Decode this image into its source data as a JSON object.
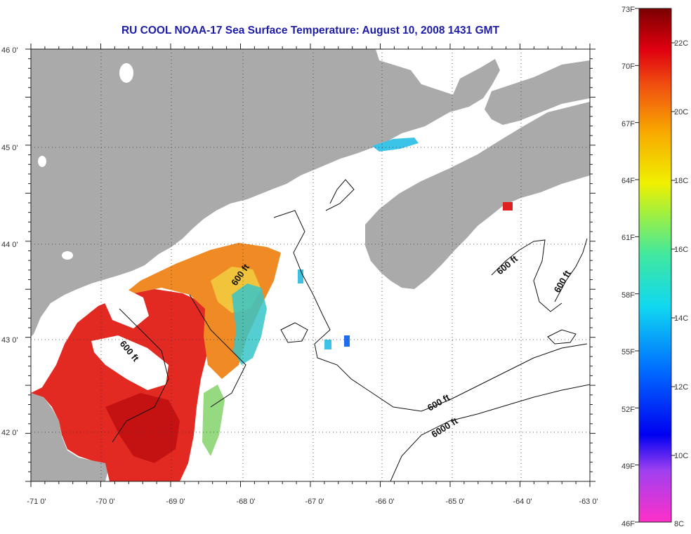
{
  "title": "RU COOL  NOAA-17  Sea Surface Temperature:  August 10, 2008 1431 GMT",
  "longitude_labels": [
    "-71 0'",
    "-70 0'",
    "-69 0'",
    "-68 0'",
    "-67 0'",
    "-66 0'",
    "-65 0'",
    "-64 0'",
    "-63 0'"
  ],
  "latitude_labels": [
    "46 0'",
    "45 0'",
    "44 0'",
    "43 0'",
    "42 0'"
  ],
  "contour_labels": [
    {
      "text": "600 ft"
    },
    {
      "text": "600 ft"
    },
    {
      "text": "600 ft"
    },
    {
      "text": "600 ft"
    },
    {
      "text": "600 ft"
    },
    {
      "text": "6000 ft"
    }
  ],
  "colorbar": {
    "fahrenheit_labels": [
      "73F",
      "70F",
      "67F",
      "64F",
      "61F",
      "58F",
      "55F",
      "52F",
      "49F",
      "46F"
    ],
    "celsius_labels": [
      "22C",
      "20C",
      "18C",
      "16C",
      "14C",
      "12C",
      "10C",
      "8C"
    ]
  },
  "colors": {
    "land": "#aaaaaa",
    "ocean_no_data": "#ffffff",
    "title": "#1c1ca8",
    "warm": "#e0201c",
    "orange": "#f07a1a",
    "cool": "#22c8e8"
  }
}
